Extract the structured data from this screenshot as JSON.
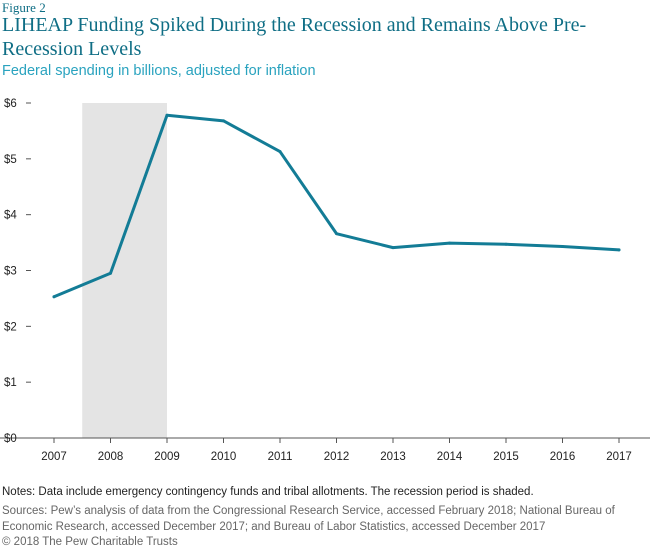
{
  "figure_label": "Figure 2",
  "notes": "Notes: Data include emergency contingency funds and tribal allotments. The recession period is shaded.",
  "sources": "Sources:  Pew’s analysis of data from the Congressional Research Service, accessed February 2018; National Bureau of Economic Research, accessed December 2017; and Bureau of Labor Statistics, accessed December 2017",
  "copyright": "© 2018 The Pew Charitable Trusts",
  "colors": {
    "line": "#137c96",
    "recession_shade": "#e4e4e4",
    "title": "#0f6e85",
    "subtitle": "#2aa3bf"
  },
  "chart_data": {
    "type": "line",
    "title": "LIHEAP Funding Spiked During the Recession and Remains Above Pre-Recession Levels",
    "subtitle": "Federal spending in billions, adjusted for inflation",
    "xlabel": "",
    "ylabel": "",
    "x": [
      2007,
      2008,
      2009,
      2010,
      2011,
      2012,
      2013,
      2014,
      2015,
      2016,
      2017
    ],
    "x_tick_labels": [
      "2007",
      "2008",
      "2009",
      "2010",
      "2011",
      "2012",
      "2013",
      "2014",
      "2015",
      "2016",
      "2017"
    ],
    "series": [
      {
        "values": [
          2.53,
          2.95,
          5.78,
          5.68,
          5.13,
          3.66,
          3.41,
          3.49,
          3.47,
          3.43,
          3.37
        ]
      }
    ],
    "ylim": [
      0,
      6
    ],
    "y_ticks": [
      0,
      1,
      2,
      3,
      4,
      5,
      6
    ],
    "y_tick_labels": [
      "$0",
      "$1",
      "$2",
      "$3",
      "$4",
      "$5",
      "$6"
    ],
    "shaded_region": {
      "x_start": 2007.5,
      "x_end": 2009,
      "label": ""
    },
    "grid": false,
    "legend": "none"
  }
}
